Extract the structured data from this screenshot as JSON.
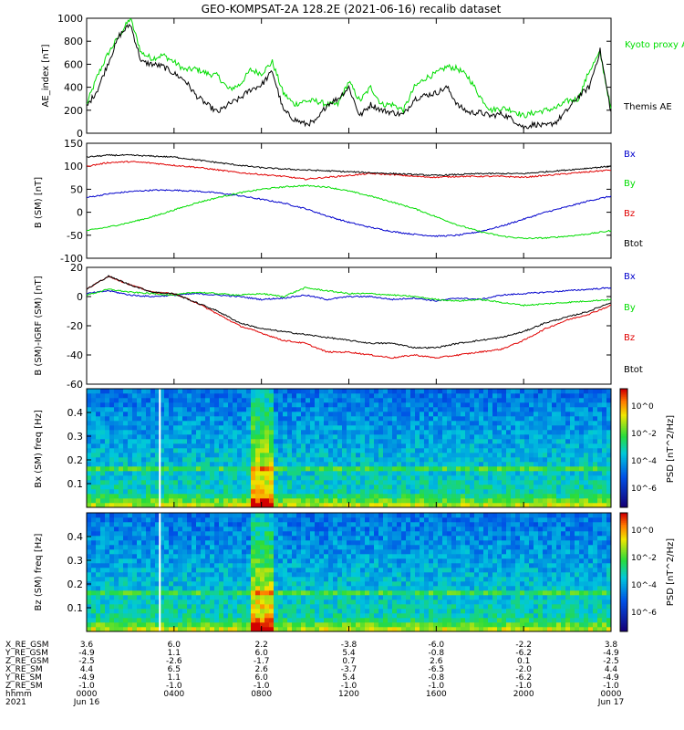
{
  "title": "GEO-KOMPSAT-2A 128.2E (2021-06-16) recalib dataset",
  "colors": {
    "black": "#000000",
    "red": "#e00000",
    "green": "#00dd00",
    "blue": "#0000cc"
  },
  "chart_data": [
    {
      "type": "line",
      "ylabel": "AE_index [nT]",
      "ylim": [
        0,
        1000
      ],
      "yticks": [
        0,
        200,
        400,
        600,
        800,
        1000
      ],
      "x_hours": [
        0,
        0.5,
        1,
        1.5,
        2,
        2.5,
        3,
        3.5,
        4,
        4.5,
        5,
        5.5,
        6,
        6.5,
        7,
        7.5,
        8,
        8.5,
        9,
        9.5,
        10,
        10.5,
        11,
        11.5,
        12,
        12.5,
        13,
        13.5,
        14,
        14.5,
        15,
        15.5,
        16,
        16.5,
        17,
        17.5,
        18,
        18.5,
        19,
        19.5,
        20,
        20.5,
        21,
        21.5,
        22,
        22.5,
        23,
        23.5,
        24
      ],
      "series": [
        {
          "name": "Kyoto proxy AE",
          "color": "green",
          "values": [
            250,
            500,
            700,
            850,
            1000,
            700,
            650,
            680,
            620,
            550,
            560,
            520,
            500,
            380,
            420,
            550,
            520,
            620,
            350,
            250,
            280,
            280,
            250,
            250,
            450,
            280,
            400,
            250,
            250,
            200,
            400,
            480,
            520,
            580,
            560,
            480,
            320,
            200,
            220,
            200,
            150,
            180,
            200,
            220,
            280,
            300,
            540,
            700,
            200
          ]
        },
        {
          "name": "Themis AE",
          "color": "black",
          "values": [
            230,
            380,
            620,
            850,
            950,
            620,
            600,
            580,
            520,
            460,
            330,
            250,
            180,
            250,
            300,
            380,
            420,
            540,
            200,
            120,
            80,
            100,
            250,
            300,
            400,
            150,
            250,
            200,
            180,
            160,
            300,
            330,
            350,
            400,
            240,
            180,
            180,
            150,
            170,
            120,
            50,
            80,
            60,
            100,
            200,
            320,
            400,
            720,
            180
          ]
        }
      ]
    },
    {
      "type": "line",
      "ylabel": "B (SM) [nT]",
      "ylim": [
        -100,
        150
      ],
      "yticks": [
        -100,
        -50,
        0,
        50,
        100,
        150
      ],
      "x_hours": [
        0,
        1,
        2,
        3,
        4,
        5,
        6,
        7,
        8,
        9,
        10,
        11,
        12,
        13,
        14,
        15,
        16,
        17,
        18,
        19,
        20,
        21,
        22,
        23,
        24
      ],
      "series": [
        {
          "name": "Bx",
          "color": "blue",
          "values": [
            32,
            40,
            45,
            48,
            48,
            46,
            42,
            36,
            28,
            20,
            8,
            -8,
            -22,
            -33,
            -42,
            -48,
            -52,
            -50,
            -42,
            -30,
            -15,
            0,
            12,
            25,
            35
          ]
        },
        {
          "name": "By",
          "color": "green",
          "values": [
            -40,
            -32,
            -22,
            -10,
            5,
            20,
            32,
            42,
            50,
            55,
            58,
            55,
            46,
            35,
            22,
            8,
            -10,
            -28,
            -42,
            -52,
            -57,
            -56,
            -52,
            -47,
            -40
          ]
        },
        {
          "name": "Bz",
          "color": "red",
          "values": [
            100,
            108,
            110,
            107,
            102,
            98,
            92,
            86,
            82,
            78,
            72,
            76,
            80,
            84,
            82,
            78,
            76,
            78,
            78,
            78,
            76,
            80,
            84,
            88,
            92
          ]
        },
        {
          "name": "Btot",
          "color": "black",
          "values": [
            120,
            124,
            124,
            122,
            120,
            114,
            108,
            102,
            97,
            94,
            92,
            90,
            88,
            86,
            84,
            82,
            80,
            82,
            84,
            84,
            84,
            88,
            92,
            96,
            100
          ]
        }
      ]
    },
    {
      "type": "line",
      "ylabel": "B (SM)-IGRF (SM) [nT]",
      "ylim": [
        -60,
        20
      ],
      "yticks": [
        -60,
        -40,
        -20,
        0,
        20
      ],
      "x_hours": [
        0,
        1,
        2,
        3,
        4,
        5,
        6,
        7,
        8,
        9,
        10,
        11,
        12,
        13,
        14,
        15,
        16,
        17,
        18,
        19,
        20,
        21,
        22,
        23,
        24
      ],
      "series": [
        {
          "name": "Bx",
          "color": "blue",
          "values": [
            2,
            4,
            1,
            0,
            1,
            2,
            1,
            0,
            -2,
            -1,
            1,
            -2,
            0,
            0,
            -2,
            -1,
            -3,
            -1,
            -2,
            1,
            2,
            3,
            4,
            5,
            6
          ]
        },
        {
          "name": "By",
          "color": "green",
          "values": [
            1,
            5,
            3,
            2,
            1,
            3,
            2,
            1,
            2,
            0,
            6,
            4,
            2,
            2,
            1,
            0,
            -2,
            -3,
            -2,
            -4,
            -6,
            -5,
            -4,
            -3,
            -2
          ]
        },
        {
          "name": "Bz",
          "color": "red",
          "values": [
            5,
            14,
            8,
            3,
            2,
            -4,
            -12,
            -20,
            -25,
            -30,
            -32,
            -38,
            -38,
            -40,
            -42,
            -40,
            -42,
            -40,
            -38,
            -36,
            -30,
            -22,
            -16,
            -12,
            -6
          ]
        },
        {
          "name": "Btot",
          "color": "black",
          "values": [
            5,
            14,
            8,
            3,
            2,
            -4,
            -10,
            -18,
            -22,
            -24,
            -26,
            -28,
            -30,
            -32,
            -32,
            -35,
            -35,
            -32,
            -30,
            -28,
            -24,
            -18,
            -14,
            -10,
            -4
          ]
        }
      ]
    },
    {
      "type": "heatmap",
      "panel": "Bx (SM)",
      "ylabel": "Bx (SM) freq [Hz]",
      "ylim": [
        0,
        0.5
      ],
      "yticks": [
        0.1,
        0.2,
        0.3,
        0.4
      ],
      "colorbar_label": "PSD [nT^2/Hz]",
      "colorbar_ticks": [
        "10^0",
        "10^-2",
        "10^-4",
        "10^-6"
      ]
    },
    {
      "type": "heatmap",
      "panel": "Bz (SM)",
      "ylabel": "Bz (SM) freq [Hz]",
      "ylim": [
        0,
        0.5
      ],
      "yticks": [
        0.1,
        0.2,
        0.3,
        0.4
      ],
      "colorbar_label": "PSD [nT^2/Hz]",
      "colorbar_ticks": [
        "10^0",
        "10^-2",
        "10^-4",
        "10^-6"
      ]
    }
  ],
  "orbit_table": {
    "row_labels": [
      "X_RE_GSM",
      "Y_RE_GSM",
      "Z_RE_GSM",
      "X_RE_SM",
      "Y_RE_SM",
      "Z_RE_SM",
      "hhmm",
      "2021"
    ],
    "columns": [
      [
        "3.6",
        "-4.9",
        "-2.5",
        "4.4",
        "-4.9",
        "-1.0",
        "0000",
        "Jun 16"
      ],
      [
        "6.0",
        "1.1",
        "-2.6",
        "6.5",
        "1.1",
        "-1.0",
        "0400",
        ""
      ],
      [
        "2.2",
        "6.0",
        "-1.7",
        "2.6",
        "6.0",
        "-1.0",
        "0800",
        ""
      ],
      [
        "-3.8",
        "5.4",
        "0.7",
        "-3.7",
        "5.4",
        "-1.0",
        "1200",
        ""
      ],
      [
        "-6.0",
        "-0.8",
        "2.6",
        "-6.5",
        "-0.8",
        "-1.0",
        "1600",
        ""
      ],
      [
        "-2.2",
        "-6.2",
        "0.1",
        "-2.0",
        "-6.2",
        "-1.0",
        "2000",
        ""
      ],
      [
        "3.8",
        "-4.9",
        "-2.5",
        "4.4",
        "-4.9",
        "-1.0",
        "0000",
        "Jun 17"
      ]
    ]
  }
}
